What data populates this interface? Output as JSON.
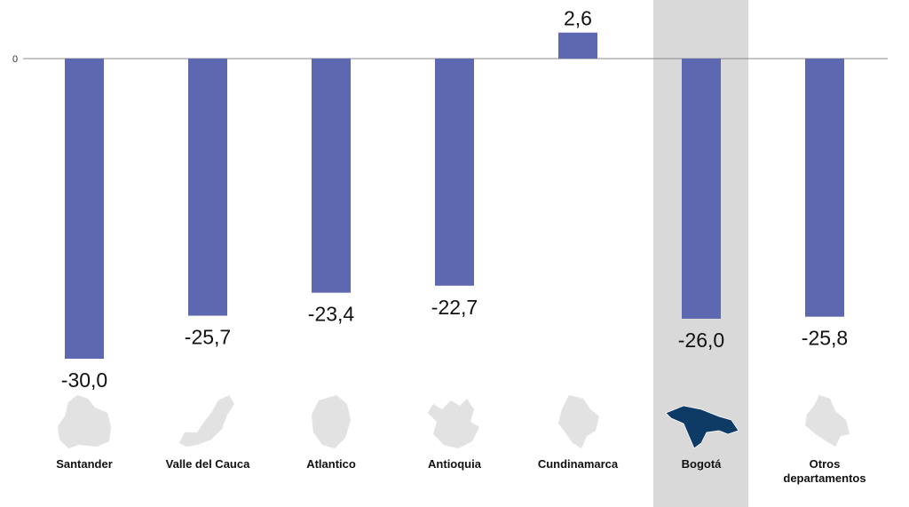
{
  "chart_data": {
    "type": "bar",
    "title": "",
    "xlabel": "",
    "ylabel": "",
    "categories": [
      "Santander",
      "Valle del Cauca",
      "Atlantico",
      "Antioquia",
      "Cundinamarca",
      "Bogotá",
      "Otros departamentos"
    ],
    "values": [
      -30.0,
      -25.7,
      -23.4,
      -22.7,
      2.6,
      -26.0,
      -25.8
    ],
    "value_labels": [
      "-30,0",
      "-25,7",
      "-23,4",
      "-22,7",
      "2,6",
      "-26,0",
      "-25,8"
    ],
    "highlighted_category": "Bogotá",
    "y_ticks": [
      "0"
    ],
    "ylim": [
      -30,
      2.6
    ],
    "grid": false,
    "colors": {
      "bar": "#5e68b0",
      "highlight_bg": "#d9d9d9",
      "map_default": "#e2e2e2",
      "map_highlight": "#0d3b66"
    }
  }
}
